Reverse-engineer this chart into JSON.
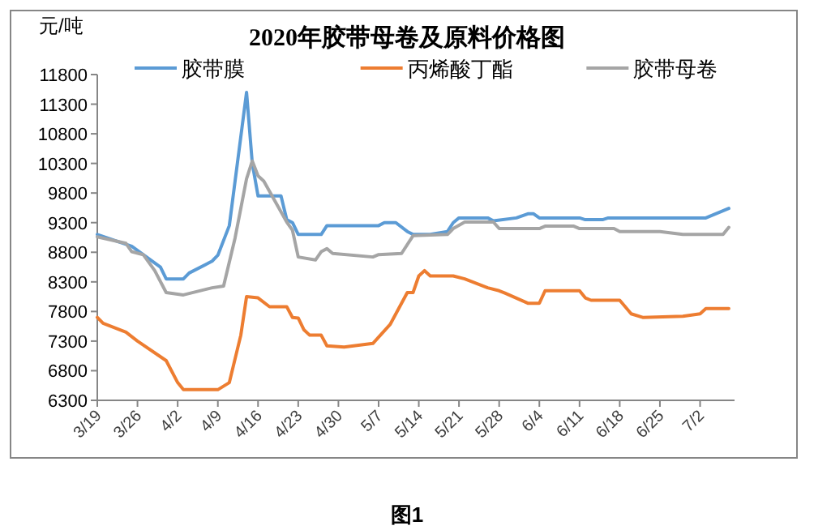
{
  "chart_data": {
    "type": "line",
    "title": "2020年胶带母卷及原料价格图",
    "ylabel": "元/吨",
    "annotations": [
      "图1"
    ],
    "legend": "top",
    "grid": false,
    "marker": "none",
    "line_style": "solid",
    "xlim": [
      "--03-19",
      "--07-08"
    ],
    "xticks": [
      {
        "value": "--03-19",
        "label": "3/19"
      },
      {
        "value": "--03-26",
        "label": "3/26"
      },
      {
        "value": "--04-02",
        "label": "4/2"
      },
      {
        "value": "--04-09",
        "label": "4/9"
      },
      {
        "value": "--04-16",
        "label": "4/16"
      },
      {
        "value": "--04-23",
        "label": "4/23"
      },
      {
        "value": "--04-30",
        "label": "4/30"
      },
      {
        "value": "--05-07",
        "label": "5/7"
      },
      {
        "value": "--05-14",
        "label": "5/14"
      },
      {
        "value": "--05-21",
        "label": "5/21"
      },
      {
        "value": "--05-28",
        "label": "5/28"
      },
      {
        "value": "--06-04",
        "label": "6/4"
      },
      {
        "value": "--06-11",
        "label": "6/11"
      },
      {
        "value": "--06-18",
        "label": "6/18"
      },
      {
        "value": "--06-25",
        "label": "6/25"
      },
      {
        "value": "--07-02",
        "label": "7/2"
      }
    ],
    "ylim": [
      6300,
      11800
    ],
    "yticks": [
      6300,
      6800,
      7300,
      7800,
      8300,
      8800,
      9300,
      9800,
      10300,
      10800,
      11300,
      11800
    ],
    "series": [
      {
        "name": "胶带膜",
        "color": "#5b9bd5",
        "x": [
          "--03-19",
          "--03-25",
          "--03-30",
          "--03-31",
          "--04-03",
          "--04-04",
          "--04-08",
          "--04-09",
          "--04-11",
          "--04-14",
          "--04-15",
          "--04-16",
          "--04-20",
          "--04-21",
          "--04-22",
          "--04-23",
          "--04-27",
          "--04-28",
          "--05-07",
          "--05-08",
          "--05-10",
          "--05-12",
          "--05-13",
          "--05-16",
          "--05-19",
          "--05-20",
          "--05-21",
          "--05-26",
          "--05-27",
          "--05-31",
          "--06-02",
          "--06-03",
          "--06-04",
          "--06-11",
          "--06-12",
          "--06-15",
          "--06-16",
          "--07-03",
          "--07-07"
        ],
        "values": [
          9100,
          8900,
          8550,
          8350,
          8350,
          8450,
          8650,
          8750,
          9250,
          11500,
          10300,
          9750,
          9750,
          9350,
          9300,
          9100,
          9100,
          9250,
          9250,
          9300,
          9300,
          9150,
          9100,
          9100,
          9150,
          9300,
          9380,
          9380,
          9330,
          9380,
          9450,
          9450,
          9380,
          9380,
          9350,
          9350,
          9380,
          9380,
          9540
        ]
      },
      {
        "name": "丙烯酸丁酯",
        "color": "#ed7d31",
        "x": [
          "--03-19",
          "--03-20",
          "--03-24",
          "--03-26",
          "--03-31",
          "--04-02",
          "--04-03",
          "--04-09",
          "--04-11",
          "--04-13",
          "--04-14",
          "--04-16",
          "--04-18",
          "--04-21",
          "--04-22",
          "--04-23",
          "--04-24",
          "--04-25",
          "--04-27",
          "--04-28",
          "--05-01",
          "--05-06",
          "--05-09",
          "--05-12",
          "--05-13",
          "--05-14",
          "--05-15",
          "--05-16",
          "--05-20",
          "--05-22",
          "--05-26",
          "--05-28",
          "--05-29",
          "--06-02",
          "--06-04",
          "--06-05",
          "--06-11",
          "--06-12",
          "--06-13",
          "--06-18",
          "--06-20",
          "--06-22",
          "--06-29",
          "--07-02",
          "--07-03",
          "--07-07"
        ],
        "values": [
          7700,
          7600,
          7450,
          7300,
          6970,
          6600,
          6480,
          6480,
          6600,
          7400,
          8050,
          8030,
          7880,
          7880,
          7700,
          7690,
          7490,
          7400,
          7400,
          7220,
          7200,
          7260,
          7580,
          8120,
          8120,
          8400,
          8490,
          8400,
          8400,
          8350,
          8200,
          8150,
          8110,
          7940,
          7940,
          8150,
          8150,
          8030,
          7990,
          7990,
          7760,
          7700,
          7720,
          7760,
          7850,
          7850
        ]
      },
      {
        "name": "胶带母卷",
        "color": "#a5a5a5",
        "x": [
          "--03-19",
          "--03-24",
          "--03-25",
          "--03-27",
          "--03-29",
          "--03-31",
          "--04-03",
          "--04-08",
          "--04-10",
          "--04-12",
          "--04-14",
          "--04-15",
          "--04-16",
          "--04-17",
          "--04-21",
          "--04-22",
          "--04-23",
          "--04-26",
          "--04-27",
          "--04-28",
          "--04-29",
          "--05-06",
          "--05-07",
          "--05-11",
          "--05-13",
          "--05-19",
          "--05-20",
          "--05-22",
          "--05-27",
          "--05-28",
          "--06-04",
          "--06-05",
          "--06-10",
          "--06-11",
          "--06-17",
          "--06-18",
          "--06-25",
          "--06-29",
          "--07-06",
          "--07-07"
        ],
        "values": [
          9060,
          8950,
          8810,
          8760,
          8490,
          8120,
          8080,
          8200,
          8230,
          9040,
          10040,
          10340,
          10090,
          10000,
          9310,
          9170,
          8720,
          8670,
          8810,
          8860,
          8780,
          8720,
          8760,
          8780,
          9080,
          9100,
          9200,
          9310,
          9310,
          9200,
          9200,
          9240,
          9240,
          9200,
          9200,
          9150,
          9150,
          9100,
          9100,
          9220
        ]
      }
    ]
  }
}
